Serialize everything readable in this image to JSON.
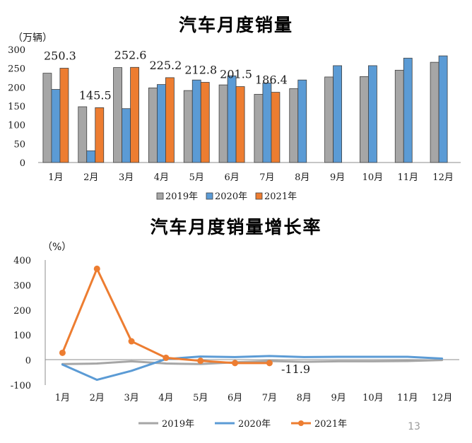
{
  "page_number": "13",
  "colors": {
    "s2019": "#a6a6a6",
    "s2020": "#5b9bd5",
    "s2021": "#ed7d31",
    "highlight": "#ff0000"
  },
  "chart_data": [
    {
      "type": "bar",
      "title": "汽车月度销量",
      "unit_label": "（万辆）",
      "categories": [
        "1月",
        "2月",
        "3月",
        "4月",
        "5月",
        "6月",
        "7月",
        "8月",
        "9月",
        "10月",
        "11月",
        "12月"
      ],
      "ylim": [
        0,
        300
      ],
      "yticks": [
        "0",
        "50",
        "100",
        "150",
        "200",
        "250",
        "300"
      ],
      "legend_position": "bottom",
      "series": [
        {
          "name": "2019年",
          "values": [
            237,
            148,
            252,
            198,
            191,
            206,
            181,
            196,
            227,
            228,
            245,
            266
          ]
        },
        {
          "name": "2020年",
          "values": [
            194,
            31,
            143,
            207,
            219,
            230,
            211,
            219,
            257,
            257,
            277,
            283
          ]
        },
        {
          "name": "2021年",
          "values": [
            250.3,
            145.5,
            252.6,
            225.2,
            212.8,
            201.5,
            186.4,
            null,
            null,
            null,
            null,
            null
          ]
        }
      ],
      "data_labels": [
        "250.3",
        "145.5",
        "252.6",
        "225.2",
        "212.8",
        "201.5",
        "186.4"
      ]
    },
    {
      "type": "line",
      "title": "汽车月度销量增长率",
      "unit_label": "（%）",
      "categories": [
        "1月",
        "2月",
        "3月",
        "4月",
        "5月",
        "6月",
        "7月",
        "8月",
        "9月",
        "10月",
        "11月",
        "12月"
      ],
      "ylim": [
        -100,
        400
      ],
      "yticks": [
        "-100",
        "0",
        "100",
        "200",
        "300",
        "400"
      ],
      "legend_position": "bottom",
      "series": [
        {
          "name": "2019年",
          "values": [
            -16,
            -14,
            -5,
            -14,
            -16,
            -9,
            -4,
            -7,
            -5,
            -5,
            -4,
            0
          ]
        },
        {
          "name": "2020年",
          "values": [
            -18,
            -79,
            -43,
            4,
            14,
            12,
            16,
            12,
            13,
            13,
            13,
            6
          ]
        },
        {
          "name": "2021年",
          "values": [
            29,
            365,
            75,
            9,
            -3,
            -12,
            -11.9,
            null,
            null,
            null,
            null,
            null
          ]
        }
      ],
      "annotation": "-11.9"
    }
  ]
}
